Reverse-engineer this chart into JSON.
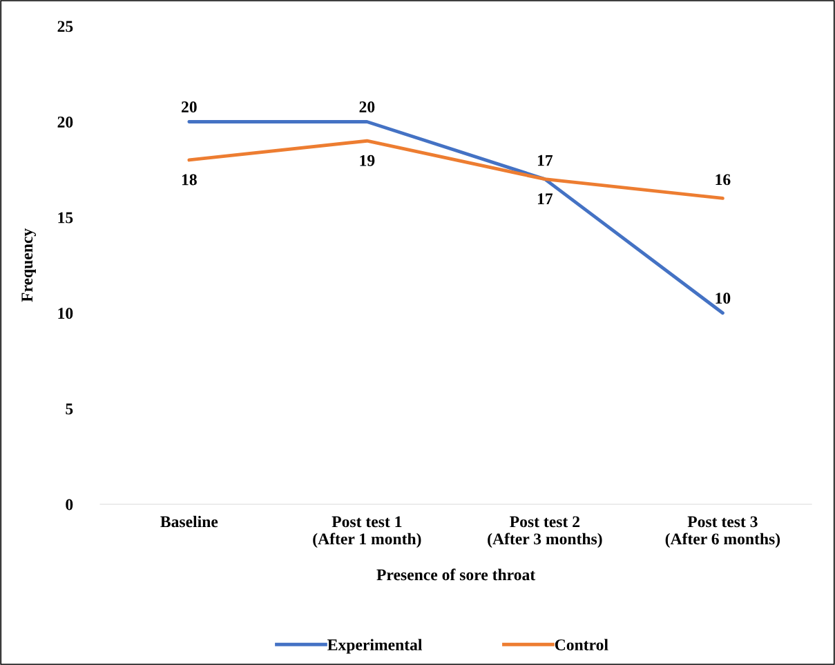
{
  "chart_data": {
    "type": "line",
    "xlabel": "Presence of sore throat",
    "ylabel": "Frequency",
    "categories": [
      "Baseline",
      "Post test 1\n(After 1 month)",
      "Post test 2\n(After 3 months)",
      "Post test 3\n(After 6 months)"
    ],
    "series": [
      {
        "name": "Experimental",
        "color": "#4472c4",
        "values": [
          20,
          20,
          17,
          10
        ]
      },
      {
        "name": "Control",
        "color": "#ed7d31",
        "values": [
          18,
          19,
          17,
          16
        ]
      }
    ],
    "ylim": [
      0,
      25
    ],
    "yticks": [
      0,
      5,
      10,
      15,
      20,
      25
    ],
    "grid": false,
    "legend": "bottom",
    "data_labels": true,
    "marker": "none",
    "line_style": "solid"
  }
}
